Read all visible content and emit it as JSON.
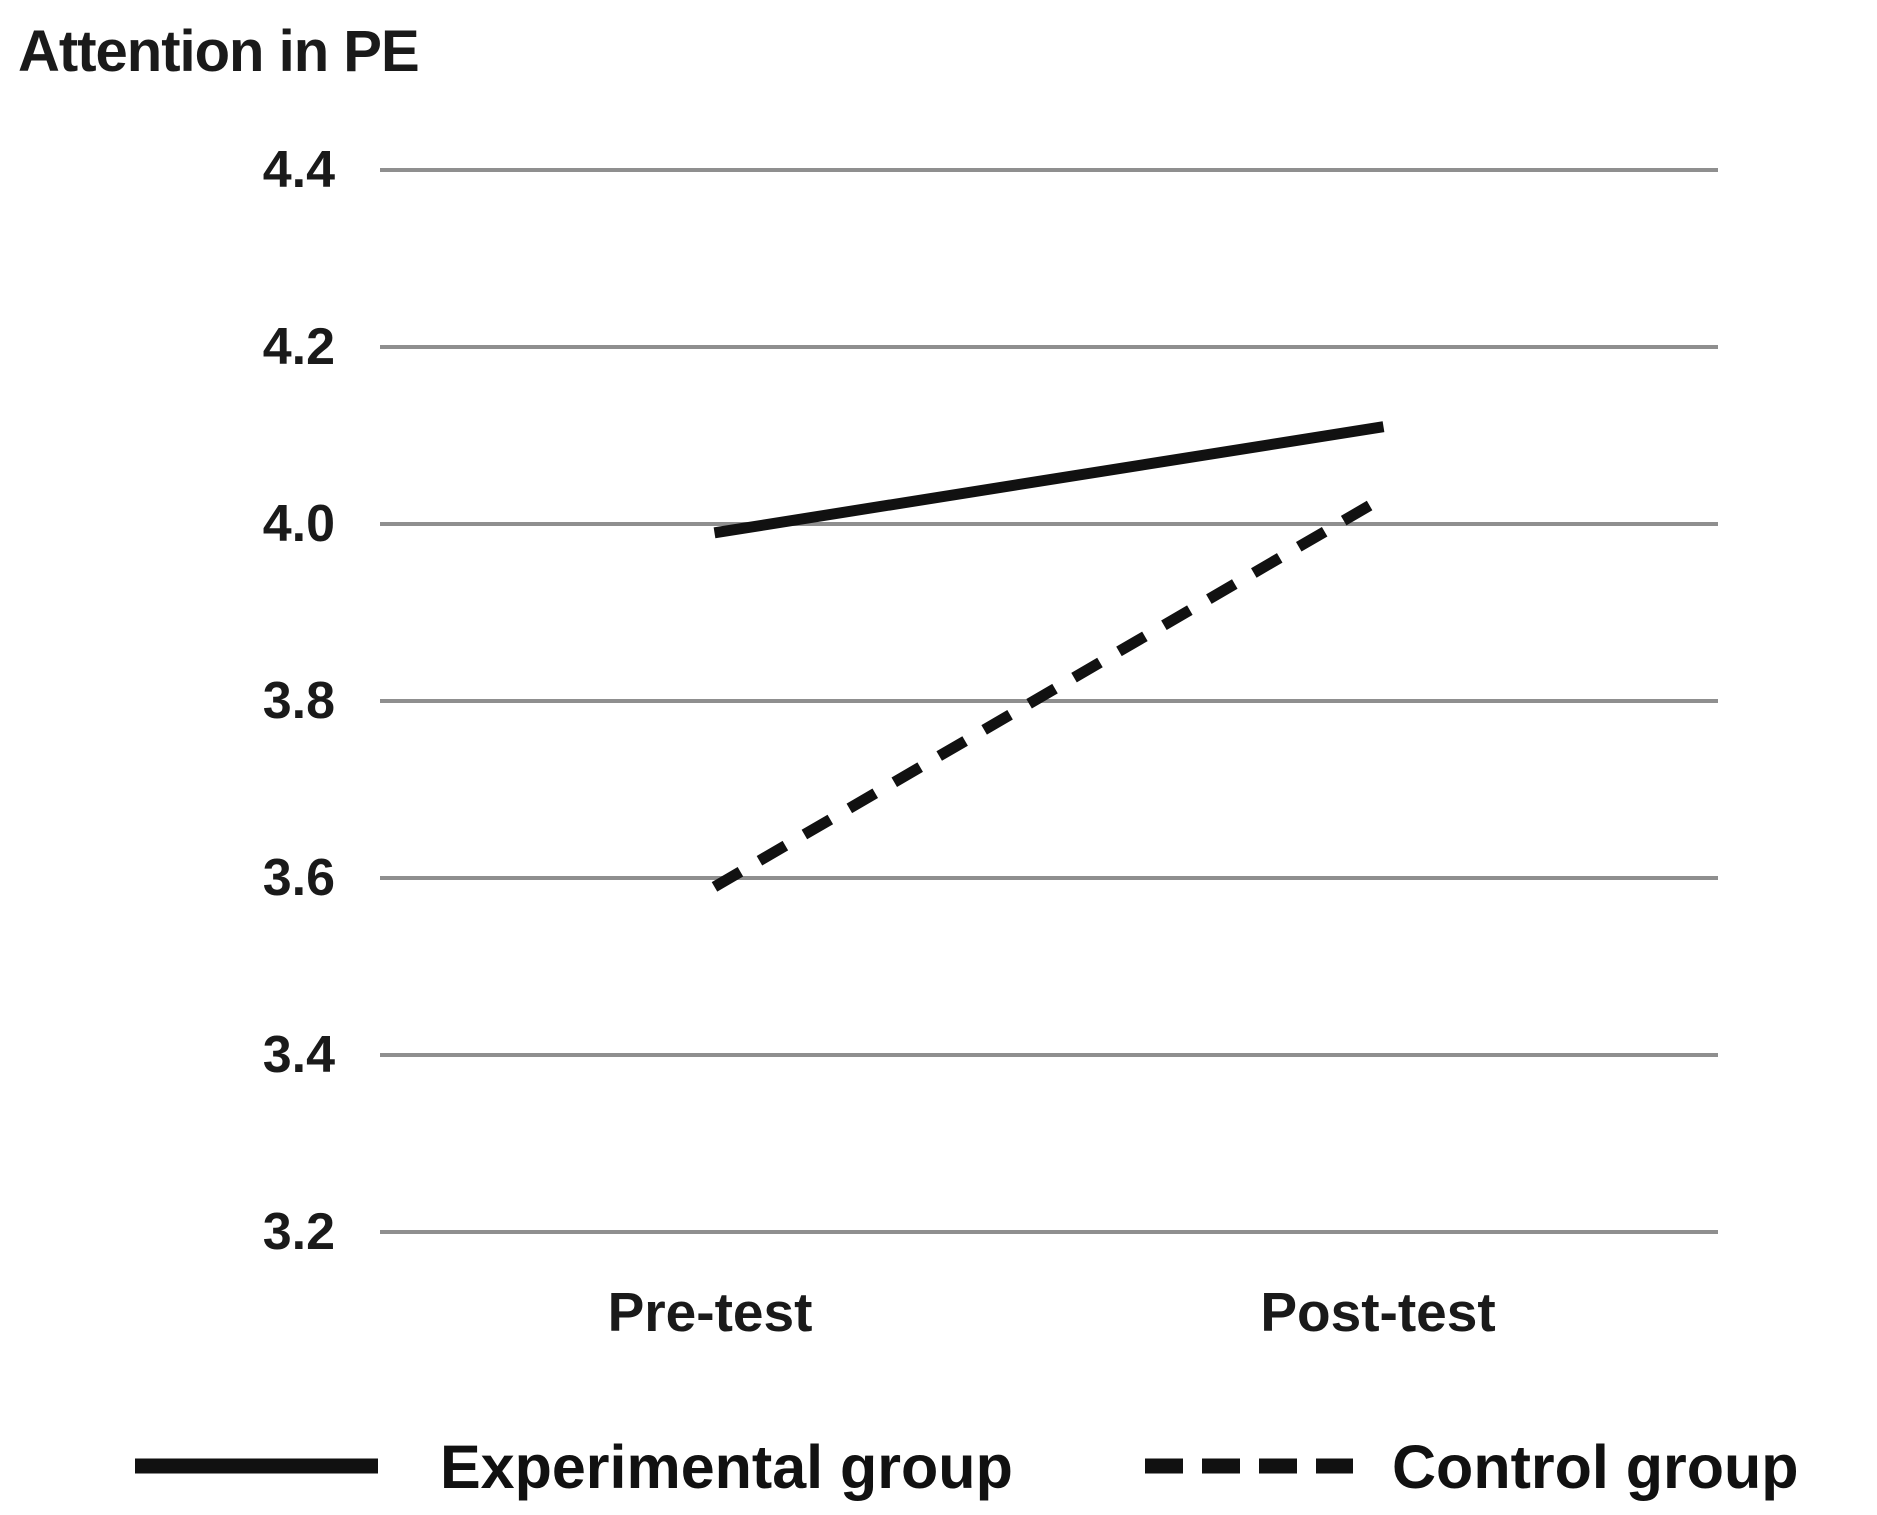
{
  "chart_data": {
    "type": "line",
    "title": "Attention in PE",
    "categories": [
      "Pre-test",
      "Post-test"
    ],
    "series": [
      {
        "name": "Experimental group",
        "style": "solid",
        "values": [
          3.99,
          4.11
        ]
      },
      {
        "name": "Control group",
        "style": "dashed",
        "values": [
          3.59,
          4.03
        ]
      }
    ],
    "yticks": [
      "4.4",
      "4.2",
      "4.0",
      "3.8",
      "3.6",
      "3.4",
      "3.2"
    ],
    "ylim": [
      3.2,
      4.4
    ],
    "xlabel": "",
    "ylabel": "",
    "grid": "horizontal-only",
    "legend_position": "bottom",
    "line_color": "#111111",
    "grid_color": "#8f8f8f",
    "background_color": "#ffffff",
    "text_color": "#1a1a1a"
  }
}
